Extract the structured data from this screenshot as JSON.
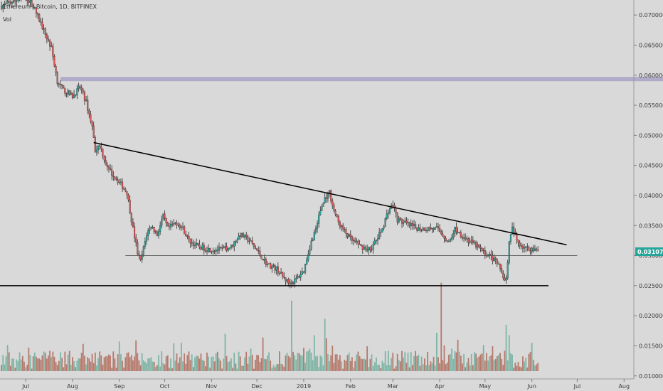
{
  "legend": {
    "symbol": "Ethereum / Bitcoin, 1D, BITFINEX",
    "volume_label": "Vol"
  },
  "price_tag": {
    "value": "0.03107047",
    "color": "#26a69a"
  },
  "colors": {
    "background": "#d9d9d9",
    "up": "#26a69a",
    "down": "#e05454",
    "volume_up": "#7fb5a6",
    "volume_down": "#b57a6c",
    "resistance_band": "#a8a6c7",
    "trendline": "#000000",
    "support_line": "#555555"
  },
  "chart_data": {
    "type": "candlestick",
    "title": "Ethereum / Bitcoin, 1D, BITFINEX",
    "y_axis": {
      "position": "right",
      "ticks": [
        "0.07000000",
        "0.06500000",
        "0.06000000",
        "0.05500000",
        "0.05000000",
        "0.04500000",
        "0.04000000",
        "0.03500000",
        "0.03000000",
        "0.02500000",
        "0.02000000",
        "0.01500000",
        "0.01000000"
      ]
    },
    "x_axis": {
      "ticks": [
        "Jul",
        "Aug",
        "Sep",
        "Oct",
        "Nov",
        "Dec",
        "2019",
        "Feb",
        "Mar",
        "Apr",
        "May",
        "Jun",
        "Jul",
        "Aug"
      ]
    },
    "price_path": [
      [
        "2018-06-15",
        0.0715
      ],
      [
        "2018-06-25",
        0.0725
      ],
      [
        "2018-07-01",
        0.073
      ],
      [
        "2018-07-06",
        0.0715
      ],
      [
        "2018-07-12",
        0.068
      ],
      [
        "2018-07-18",
        0.0645
      ],
      [
        "2018-07-22",
        0.059
      ],
      [
        "2018-07-26",
        0.0575
      ],
      [
        "2018-08-01",
        0.0565
      ],
      [
        "2018-08-06",
        0.058
      ],
      [
        "2018-08-10",
        0.0555
      ],
      [
        "2018-08-14",
        0.0515
      ],
      [
        "2018-08-16",
        0.0475
      ],
      [
        "2018-08-19",
        0.0485
      ],
      [
        "2018-08-24",
        0.0445
      ],
      [
        "2018-08-31",
        0.0425
      ],
      [
        "2018-09-06",
        0.0405
      ],
      [
        "2018-09-10",
        0.0345
      ],
      [
        "2018-09-13",
        0.0305
      ],
      [
        "2018-09-15",
        0.029
      ],
      [
        "2018-09-19",
        0.0335
      ],
      [
        "2018-09-22",
        0.035
      ],
      [
        "2018-09-26",
        0.0335
      ],
      [
        "2018-09-30",
        0.0365
      ],
      [
        "2018-10-03",
        0.0345
      ],
      [
        "2018-10-09",
        0.0355
      ],
      [
        "2018-10-13",
        0.0345
      ],
      [
        "2018-10-17",
        0.0325
      ],
      [
        "2018-10-23",
        0.0315
      ],
      [
        "2018-10-31",
        0.031
      ],
      [
        "2018-11-08",
        0.031
      ],
      [
        "2018-11-14",
        0.0315
      ],
      [
        "2018-11-20",
        0.0335
      ],
      [
        "2018-11-26",
        0.0325
      ],
      [
        "2018-12-02",
        0.0305
      ],
      [
        "2018-12-08",
        0.0285
      ],
      [
        "2018-12-14",
        0.0278
      ],
      [
        "2018-12-18",
        0.0265
      ],
      [
        "2018-12-22",
        0.0255
      ],
      [
        "2018-12-26",
        0.0258
      ],
      [
        "2019-01-01",
        0.0275
      ],
      [
        "2019-01-05",
        0.0315
      ],
      [
        "2019-01-09",
        0.0345
      ],
      [
        "2019-01-12",
        0.0375
      ],
      [
        "2019-01-15",
        0.0395
      ],
      [
        "2019-01-18",
        0.0405
      ],
      [
        "2019-01-21",
        0.0375
      ],
      [
        "2019-01-24",
        0.0355
      ],
      [
        "2019-01-28",
        0.034
      ],
      [
        "2019-02-02",
        0.0325
      ],
      [
        "2019-02-08",
        0.0315
      ],
      [
        "2019-02-14",
        0.031
      ],
      [
        "2019-02-18",
        0.0325
      ],
      [
        "2019-02-22",
        0.0345
      ],
      [
        "2019-02-26",
        0.0375
      ],
      [
        "2019-03-01",
        0.0385
      ],
      [
        "2019-03-04",
        0.036
      ],
      [
        "2019-03-08",
        0.0355
      ],
      [
        "2019-03-12",
        0.035
      ],
      [
        "2019-03-18",
        0.0345
      ],
      [
        "2019-03-24",
        0.0345
      ],
      [
        "2019-03-30",
        0.0345
      ],
      [
        "2019-04-03",
        0.0335
      ],
      [
        "2019-04-07",
        0.032
      ],
      [
        "2019-04-11",
        0.0345
      ],
      [
        "2019-04-15",
        0.0335
      ],
      [
        "2019-04-20",
        0.0325
      ],
      [
        "2019-04-26",
        0.0315
      ],
      [
        "2019-04-30",
        0.0305
      ],
      [
        "2019-05-04",
        0.03
      ],
      [
        "2019-05-08",
        0.029
      ],
      [
        "2019-05-12",
        0.0275
      ],
      [
        "2019-05-14",
        0.0258
      ],
      [
        "2019-05-15",
        0.0265
      ],
      [
        "2019-05-17",
        0.032
      ],
      [
        "2019-05-19",
        0.0345
      ],
      [
        "2019-05-22",
        0.0325
      ],
      [
        "2019-05-26",
        0.0315
      ],
      [
        "2019-05-30",
        0.031
      ],
      [
        "2019-06-02",
        0.0312
      ],
      [
        "2019-06-05",
        0.0311
      ]
    ],
    "volume_spikes": [
      [
        "2018-12-24",
        0.0225
      ],
      [
        "2019-01-15",
        0.0195
      ],
      [
        "2019-04-02",
        0.0255
      ],
      [
        "2019-05-15",
        0.0185
      ]
    ],
    "annotations": [
      {
        "type": "horizontal_band",
        "y": [
          0.059,
          0.0597
        ],
        "x": [
          "2018-07-24",
          "2019-08-31"
        ]
      },
      {
        "type": "trendline",
        "from": [
          "2018-08-15",
          0.0488
        ],
        "to": [
          "2019-06-24",
          0.0318
        ]
      },
      {
        "type": "horizontal_line",
        "y": 0.03,
        "x": [
          "2018-09-05",
          "2019-07-01"
        ]
      },
      {
        "type": "horizontal_line",
        "y": 0.025,
        "x": [
          "2018-05-01",
          "2019-06-12"
        ]
      }
    ],
    "ylim": [
      0.0095,
      0.0725
    ],
    "xlim": [
      "2018-06-14",
      "2019-08-07"
    ]
  }
}
